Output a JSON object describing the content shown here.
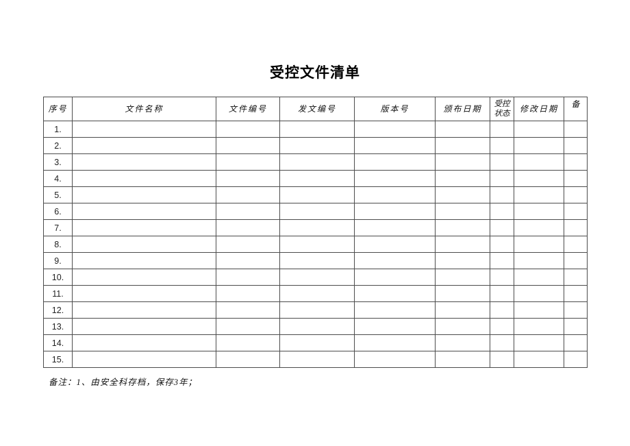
{
  "page": {
    "title": "受控文件清单",
    "note": "备注：1、由安全科存档，保存3年；"
  },
  "table": {
    "headers": [
      "序号",
      "文件名称",
      "文件编号",
      "发文编号",
      "版本号",
      "颁布日期",
      "受控状态",
      "修改日期",
      "备"
    ],
    "rows": [
      {
        "no": "1.",
        "cells": [
          "",
          "",
          "",
          "",
          "",
          "",
          "",
          ""
        ]
      },
      {
        "no": "2.",
        "cells": [
          "",
          "",
          "",
          "",
          "",
          "",
          "",
          ""
        ]
      },
      {
        "no": "3.",
        "cells": [
          "",
          "",
          "",
          "",
          "",
          "",
          "",
          ""
        ]
      },
      {
        "no": "4.",
        "cells": [
          "",
          "",
          "",
          "",
          "",
          "",
          "",
          ""
        ]
      },
      {
        "no": "5.",
        "cells": [
          "",
          "",
          "",
          "",
          "",
          "",
          "",
          ""
        ]
      },
      {
        "no": "6.",
        "cells": [
          "",
          "",
          "",
          "",
          "",
          "",
          "",
          ""
        ]
      },
      {
        "no": "7.",
        "cells": [
          "",
          "",
          "",
          "",
          "",
          "",
          "",
          ""
        ]
      },
      {
        "no": "8.",
        "cells": [
          "",
          "",
          "",
          "",
          "",
          "",
          "",
          ""
        ]
      },
      {
        "no": "9.",
        "cells": [
          "",
          "",
          "",
          "",
          "",
          "",
          "",
          ""
        ]
      },
      {
        "no": "10.",
        "cells": [
          "",
          "",
          "",
          "",
          "",
          "",
          "",
          ""
        ]
      },
      {
        "no": "11.",
        "cells": [
          "",
          "",
          "",
          "",
          "",
          "",
          "",
          ""
        ]
      },
      {
        "no": "12.",
        "cells": [
          "",
          "",
          "",
          "",
          "",
          "",
          "",
          ""
        ]
      },
      {
        "no": "13.",
        "cells": [
          "",
          "",
          "",
          "",
          "",
          "",
          "",
          ""
        ]
      },
      {
        "no": "14.",
        "cells": [
          "",
          "",
          "",
          "",
          "",
          "",
          "",
          ""
        ]
      },
      {
        "no": "15.",
        "cells": [
          "",
          "",
          "",
          "",
          "",
          "",
          "",
          ""
        ]
      }
    ]
  }
}
